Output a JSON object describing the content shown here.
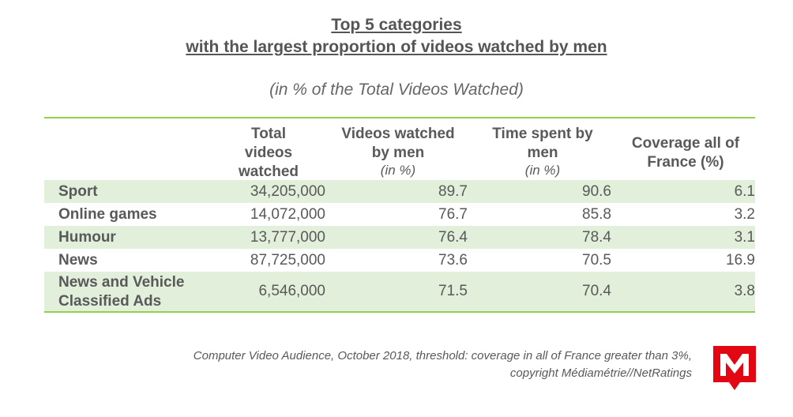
{
  "title_line1": "Top 5 categories",
  "title_line2": "with the largest proportion of videos watched by men",
  "subtitle": "(in % of the Total Videos Watched)",
  "headers": {
    "total_videos": [
      "Total",
      "videos",
      "watched"
    ],
    "videos_by_men": [
      "Videos watched",
      "by men"
    ],
    "videos_by_men_unit": "(in %)",
    "time_by_men": [
      "Time spent by",
      "men"
    ],
    "time_by_men_unit": "(in %)",
    "coverage": [
      "Coverage all of",
      "France (%)"
    ]
  },
  "chart_data": {
    "type": "table",
    "title": "Top 5 categories with the largest proportion of videos watched by men",
    "subtitle": "(in % of the Total Videos Watched)",
    "columns": [
      "Total videos watched",
      "Videos watched by men (in %)",
      "Time spent by men (in %)",
      "Coverage all of France (%)"
    ],
    "rows": [
      {
        "category": "Sport",
        "total_videos": "34,205,000",
        "videos_by_men": "89.7",
        "time_by_men": "90.6",
        "coverage": "6.1"
      },
      {
        "category": "Online games",
        "total_videos": "14,072,000",
        "videos_by_men": "76.7",
        "time_by_men": "85.8",
        "coverage": "3.2"
      },
      {
        "category": "Humour",
        "total_videos": "13,777,000",
        "videos_by_men": "76.4",
        "time_by_men": "78.4",
        "coverage": "3.1"
      },
      {
        "category": "News",
        "total_videos": "87,725,000",
        "videos_by_men": "73.6",
        "time_by_men": "70.5",
        "coverage": "16.9"
      },
      {
        "category": "News and Vehicle Classified Ads",
        "total_videos": "6,546,000",
        "videos_by_men": "71.5",
        "time_by_men": "70.4",
        "coverage": "3.8"
      }
    ]
  },
  "source_line1": "Computer Video Audience, October 2018, threshold: coverage in all of France greater than 3%,",
  "source_line2": "copyright Médiamétrie//NetRatings",
  "colors": {
    "accent_line": "#92d050",
    "row_shade": "#e2efda",
    "logo_red": "#e30613"
  },
  "logo_icon": "mediametrie-logo-icon"
}
